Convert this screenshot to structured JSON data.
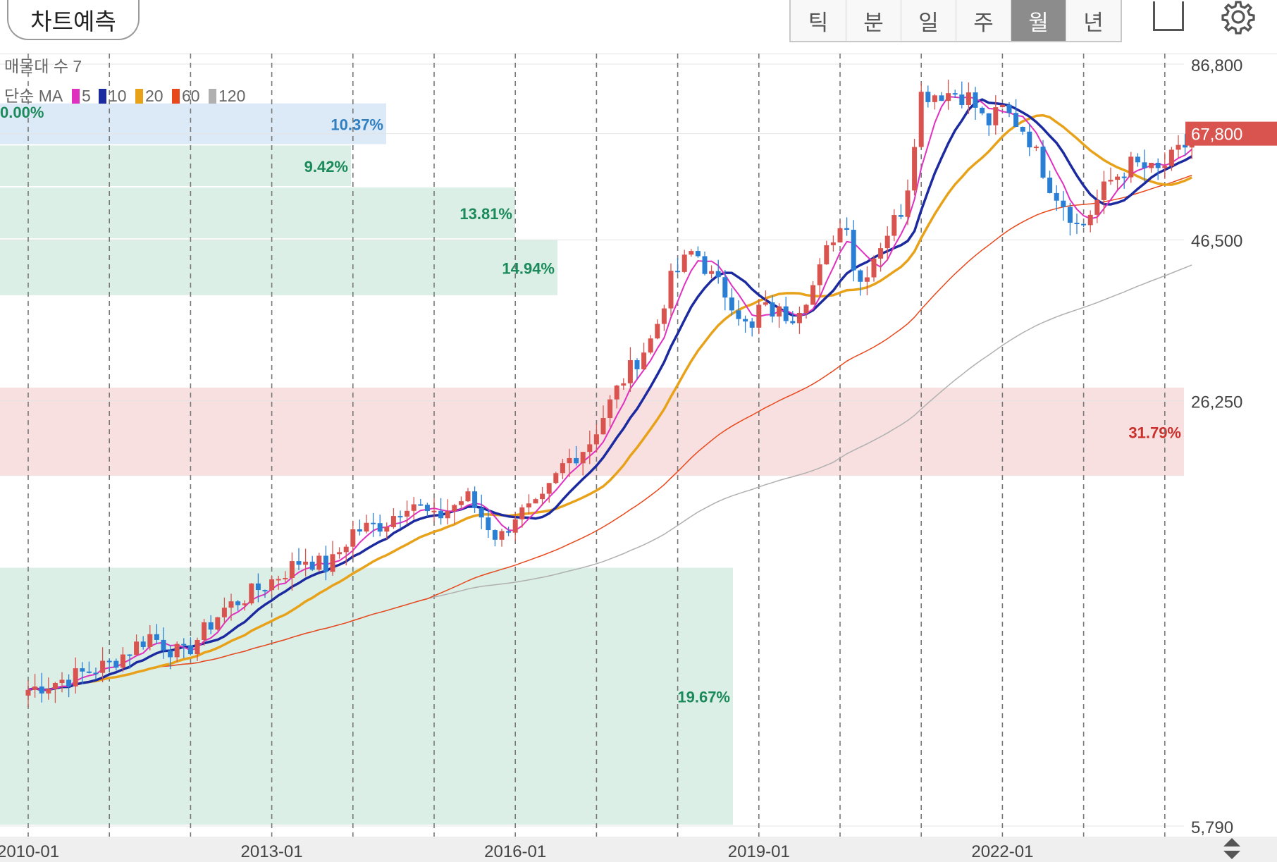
{
  "toolbar": {
    "predict_label": "차트예측",
    "periods": [
      "틱",
      "분",
      "일",
      "주",
      "월",
      "년"
    ],
    "active_period": "월",
    "icons": [
      "square-icon",
      "gear-icon"
    ]
  },
  "chart_data": {
    "type": "candlestick",
    "period": "monthly",
    "y_axis": {
      "scale": "log",
      "min": 5790,
      "max": 86800,
      "ticks": [
        86800,
        46500,
        26250,
        5790
      ],
      "tick_labels": [
        "86,800",
        "46,500",
        "26,250",
        "5,790"
      ],
      "position": "right"
    },
    "x_axis": {
      "tick_labels": [
        "2010-01",
        "2013-01",
        "2016-01",
        "2019-01",
        "2022-01"
      ],
      "major_x": [
        2010,
        2013,
        2016,
        2019,
        2022
      ],
      "gridlines_every_years": 1
    },
    "grid": true,
    "current_price": 67800,
    "current_price_label": "67,800",
    "current_price_color": "#d9534f",
    "legend": {
      "volume_profile_label": "매물대 수 7",
      "ma_label": "단순 MA",
      "ma_periods": [
        5,
        10,
        20,
        60,
        120
      ],
      "ma_colors": [
        "#e030c0",
        "#1c2aa0",
        "#e8a21a",
        "#e8481c",
        "#b0b0b0"
      ],
      "zero_label": "0.00%"
    },
    "volume_profile": [
      {
        "label": "10.37%",
        "percent": 10.37,
        "price_low": 65000,
        "price_high": 75500,
        "color": "#dce9f7",
        "text_color": "#2f7fc1"
      },
      {
        "label": "9.42%",
        "percent": 9.42,
        "price_low": 56000,
        "price_high": 65000,
        "color": "#dcefe6",
        "text_color": "#1b8a5a"
      },
      {
        "label": "13.81%",
        "percent": 13.81,
        "price_low": 46500,
        "price_high": 56000,
        "color": "#dcefe6",
        "text_color": "#1b8a5a"
      },
      {
        "label": "14.94%",
        "percent": 14.94,
        "price_low": 38000,
        "price_high": 46500,
        "color": "#dcefe6",
        "text_color": "#1b8a5a"
      },
      {
        "label": "31.79%",
        "percent": 31.79,
        "price_low": 20000,
        "price_high": 27500,
        "color": "#f9e0e0",
        "text_color": "#c9302c"
      },
      {
        "label": "19.67%",
        "percent": 19.67,
        "price_low": 5790,
        "price_high": 14500,
        "color": "#dcefe6",
        "text_color": "#1b8a5a"
      }
    ],
    "price_path": [
      [
        2010.0,
        9400
      ],
      [
        2010.5,
        9800
      ],
      [
        2011.0,
        10300
      ],
      [
        2011.5,
        11400
      ],
      [
        2011.9,
        10600
      ],
      [
        2012.4,
        12500
      ],
      [
        2012.9,
        13600
      ],
      [
        2013.4,
        15000
      ],
      [
        2013.7,
        14500
      ],
      [
        2014.0,
        16500
      ],
      [
        2014.4,
        17000
      ],
      [
        2014.7,
        18500
      ],
      [
        2015.0,
        17200
      ],
      [
        2015.4,
        18700
      ],
      [
        2015.8,
        16000
      ],
      [
        2016.0,
        17500
      ],
      [
        2016.3,
        18000
      ],
      [
        2016.6,
        21000
      ],
      [
        2016.9,
        22500
      ],
      [
        2017.3,
        28000
      ],
      [
        2017.7,
        33000
      ],
      [
        2017.9,
        40000
      ],
      [
        2018.2,
        45000
      ],
      [
        2018.4,
        41000
      ],
      [
        2018.7,
        37000
      ],
      [
        2018.9,
        33000
      ],
      [
        2019.0,
        36500
      ],
      [
        2019.4,
        35500
      ],
      [
        2019.7,
        40000
      ],
      [
        2019.9,
        47000
      ],
      [
        2020.1,
        50000
      ],
      [
        2020.2,
        39000
      ],
      [
        2020.5,
        46000
      ],
      [
        2020.8,
        53000
      ],
      [
        2020.9,
        65000
      ],
      [
        2021.0,
        78000
      ],
      [
        2021.4,
        78500
      ],
      [
        2021.6,
        77000
      ],
      [
        2021.8,
        70000
      ],
      [
        2022.0,
        74000
      ],
      [
        2022.3,
        68000
      ],
      [
        2022.6,
        56000
      ],
      [
        2022.8,
        52000
      ],
      [
        2022.95,
        48000
      ],
      [
        2023.3,
        57000
      ],
      [
        2023.6,
        61000
      ],
      [
        2023.9,
        59000
      ],
      [
        2024.2,
        64000
      ],
      [
        2024.4,
        67800
      ]
    ],
    "candle_colors": {
      "up": "#d9534f",
      "down": "#2a7fd4"
    }
  }
}
